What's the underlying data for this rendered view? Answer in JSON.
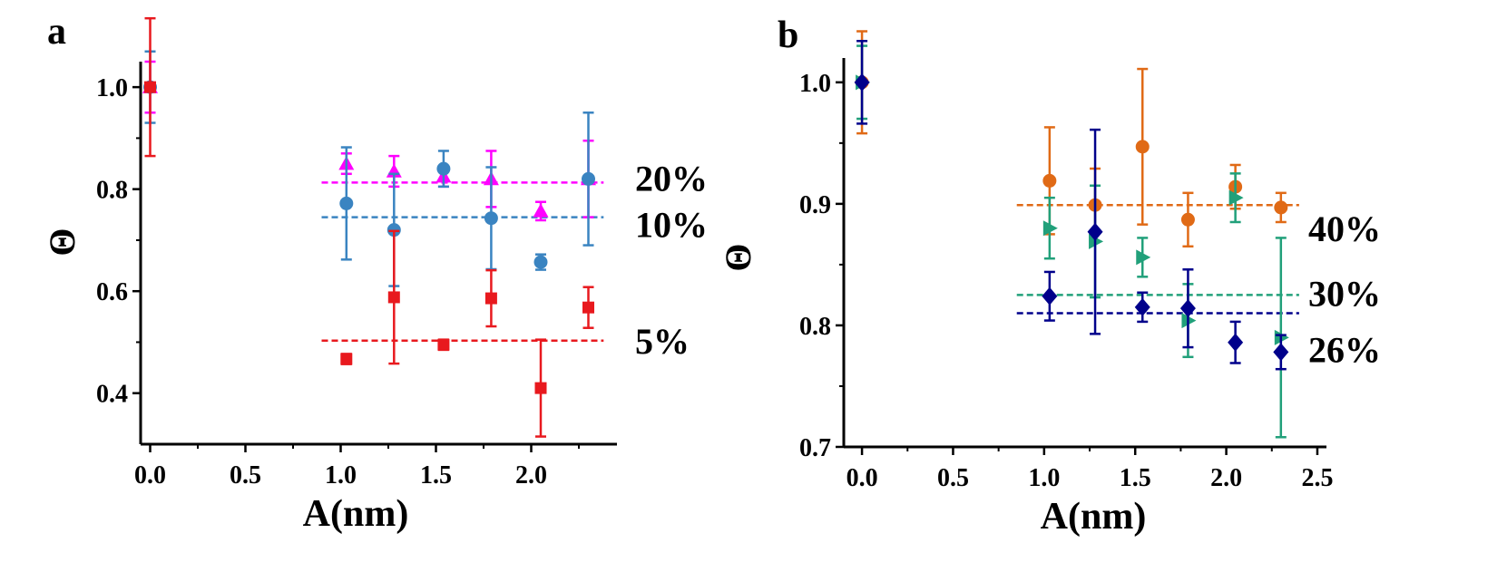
{
  "chart_data": [
    {
      "panel": "a",
      "type": "scatter",
      "xlabel": "A(nm)",
      "ylabel": "Θ",
      "xlim": [
        -0.05,
        2.45
      ],
      "ylim": [
        0.3,
        1.05
      ],
      "xticks": [
        "0.0",
        "0.5",
        "1.0",
        "1.5",
        "2.0"
      ],
      "yticks": [
        "0.4",
        "0.6",
        "0.8",
        "1.0"
      ],
      "series": [
        {
          "name": "20%",
          "marker": "triangle",
          "color": "#ff00ff",
          "x": [
            0,
            1.03,
            1.28,
            1.54,
            1.79,
            2.05,
            2.3
          ],
          "y": [
            1.0,
            0.85,
            0.835,
            0.825,
            0.82,
            0.757,
            0.82
          ],
          "err": [
            0.05,
            0.02,
            0.03,
            0.02,
            0.055,
            0.018,
            0.075
          ]
        },
        {
          "name": "10%",
          "marker": "circle",
          "color": "#3a84c1",
          "x": [
            0,
            1.03,
            1.28,
            1.54,
            1.79,
            2.05,
            2.3
          ],
          "y": [
            1.0,
            0.772,
            0.72,
            0.84,
            0.743,
            0.657,
            0.82
          ],
          "err": [
            0.07,
            0.11,
            0.11,
            0.035,
            0.1,
            0.015,
            0.13
          ]
        },
        {
          "name": "5%",
          "marker": "square",
          "color": "#e8191e",
          "x": [
            0,
            1.03,
            1.28,
            1.54,
            1.79,
            2.05,
            2.3
          ],
          "y": [
            1.0,
            0.467,
            0.588,
            0.495,
            0.586,
            0.41,
            0.568
          ],
          "err": [
            0.135,
            0.01,
            0.13,
            0.01,
            0.055,
            0.095,
            0.04
          ]
        }
      ],
      "hlines": [
        {
          "label": "20%",
          "y": 0.813,
          "color": "#ff00ff",
          "x0": 0.9,
          "x1": 2.38
        },
        {
          "label": "10%",
          "y": 0.745,
          "color": "#3a84c1",
          "x0": 0.9,
          "x1": 2.38
        },
        {
          "label": "5%",
          "y": 0.503,
          "color": "#e8191e",
          "x0": 0.9,
          "x1": 2.38
        }
      ]
    },
    {
      "panel": "b",
      "type": "scatter",
      "xlabel": "A(nm)",
      "ylabel": "Θ",
      "xlim": [
        -0.1,
        2.55
      ],
      "ylim": [
        0.7,
        1.02
      ],
      "xticks": [
        "0.0",
        "0.5",
        "1.0",
        "1.5",
        "2.0",
        "2.5"
      ],
      "yticks": [
        "0.7",
        "0.8",
        "0.9",
        "1.0"
      ],
      "series": [
        {
          "name": "40%",
          "marker": "circle",
          "color": "#e06a16",
          "x": [
            0,
            1.03,
            1.28,
            1.54,
            1.79,
            2.05,
            2.3
          ],
          "y": [
            1.0,
            0.919,
            0.899,
            0.947,
            0.887,
            0.914,
            0.897
          ],
          "err": [
            0.042,
            0.044,
            0.03,
            0.064,
            0.022,
            0.018,
            0.012
          ]
        },
        {
          "name": "30%",
          "marker": "triangle-right",
          "color": "#21a07a",
          "x": [
            0,
            1.03,
            1.28,
            1.54,
            1.79,
            2.05,
            2.3
          ],
          "y": [
            1.0,
            0.88,
            0.869,
            0.856,
            0.804,
            0.905,
            0.79
          ],
          "err": [
            0.03,
            0.025,
            0.046,
            0.016,
            0.03,
            0.02,
            0.082
          ]
        },
        {
          "name": "26%",
          "marker": "diamond",
          "color": "#00008b",
          "x": [
            0,
            1.03,
            1.28,
            1.54,
            1.79,
            2.05,
            2.3
          ],
          "y": [
            1.0,
            0.824,
            0.877,
            0.815,
            0.814,
            0.786,
            0.778
          ],
          "err": [
            0.034,
            0.02,
            0.084,
            0.012,
            0.032,
            0.017,
            0.014
          ]
        }
      ],
      "hlines": [
        {
          "label": "40%",
          "y": 0.899,
          "color": "#e06a16",
          "x0": 0.85,
          "x1": 2.4
        },
        {
          "label": "30%",
          "y": 0.825,
          "color": "#21a07a",
          "x0": 0.85,
          "x1": 2.4
        },
        {
          "label": "26%",
          "y": 0.81,
          "color": "#00008b",
          "x0": 0.85,
          "x1": 2.4
        }
      ]
    }
  ]
}
